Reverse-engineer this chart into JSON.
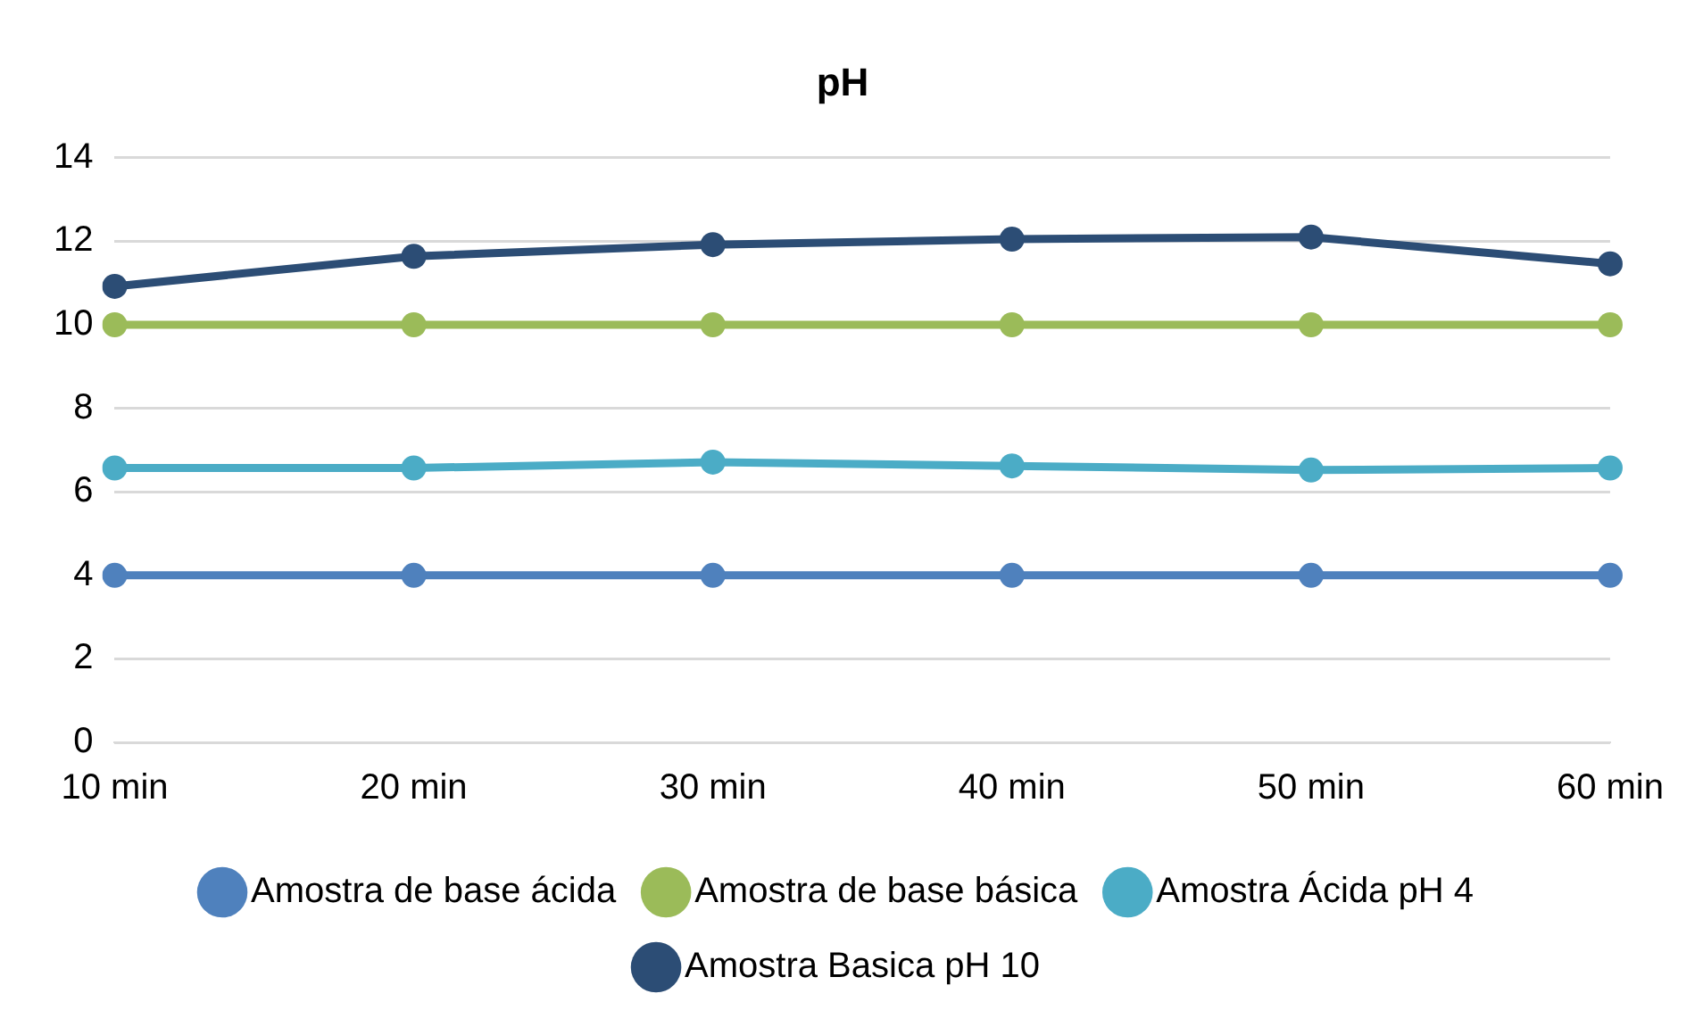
{
  "chart_data": {
    "type": "line",
    "title": "pH",
    "categories": [
      "10 min",
      "20 min",
      "30 min",
      "40 min",
      "50 min",
      "60 min"
    ],
    "series": [
      {
        "name": "Amostra de base ácida",
        "color": "#4f81bd",
        "values": [
          4,
          4,
          4,
          4,
          4,
          4
        ]
      },
      {
        "name": "Amostra de base básica",
        "color": "#9bbb59",
        "values": [
          10,
          10,
          10,
          10,
          10,
          10
        ]
      },
      {
        "name": "Amostra Ácida pH 4",
        "color": "#4bacc6",
        "values": [
          6.57,
          6.57,
          6.71,
          6.62,
          6.52,
          6.57
        ]
      },
      {
        "name": "Amostra Basica pH 10",
        "color": "#2c4d75",
        "values": [
          10.92,
          11.64,
          11.92,
          12.05,
          12.1,
          11.46
        ]
      }
    ],
    "ylim": [
      0,
      14
    ],
    "yticks": [
      0,
      2,
      4,
      6,
      8,
      10,
      12,
      14
    ],
    "grid": "y",
    "legend": "bottom",
    "marker": "circle",
    "line_style": "solid"
  }
}
